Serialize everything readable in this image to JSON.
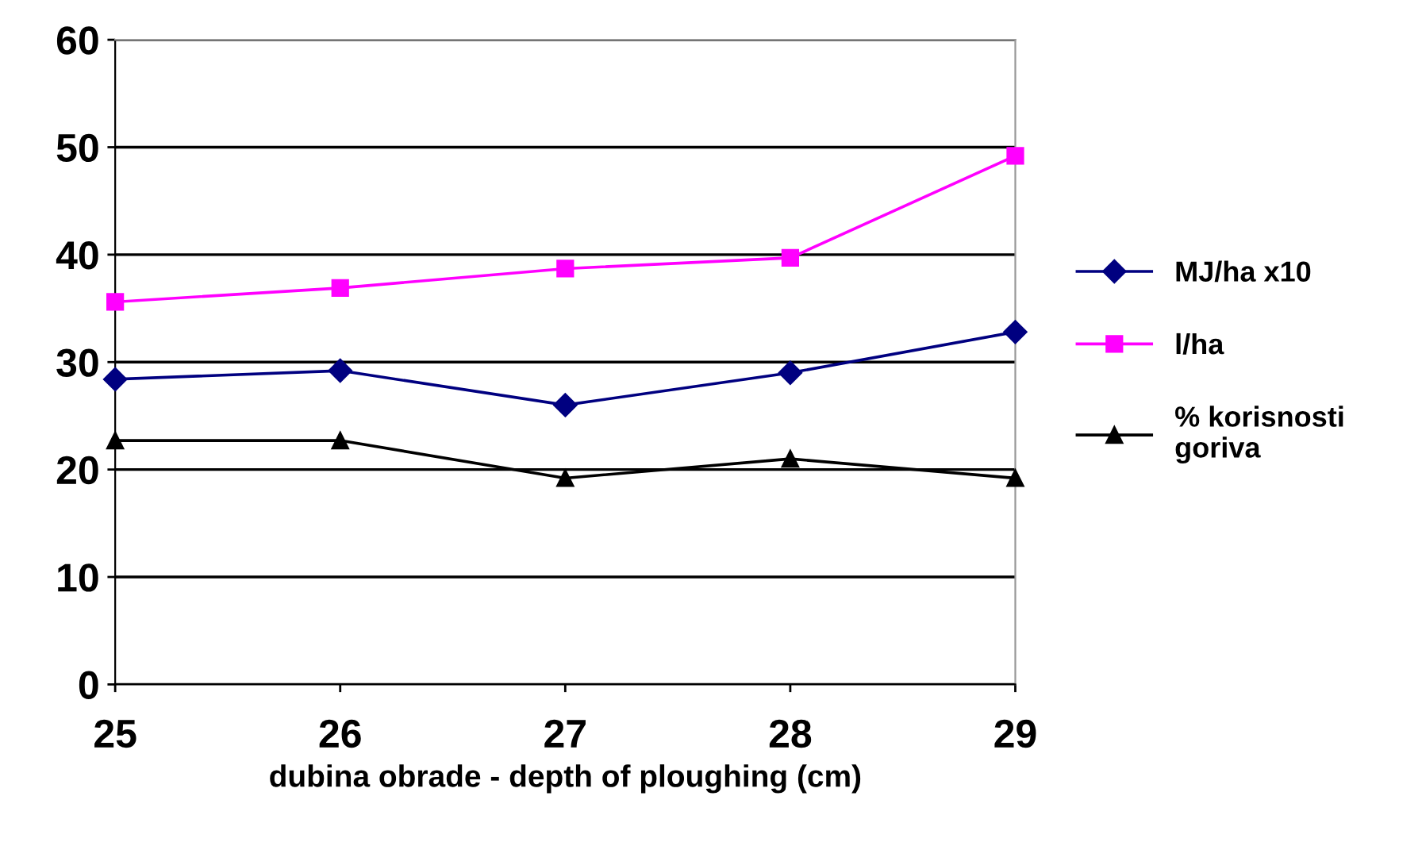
{
  "chart_data": {
    "type": "line",
    "xlabel": "dubina obrade - depth of ploughing (cm)",
    "x": [
      25,
      26,
      27,
      28,
      29
    ],
    "xlim": [
      25,
      29
    ],
    "xticks": [
      25,
      26,
      27,
      28,
      29
    ],
    "ylim": [
      0,
      60
    ],
    "yticks": [
      0,
      10,
      20,
      30,
      40,
      50,
      60
    ],
    "grid": "y",
    "legend": "right",
    "line_style": "solid",
    "series": [
      {
        "name": "MJ/ha x10",
        "color": "#000080",
        "marker": "diamond",
        "values": [
          28.4,
          29.2,
          26.0,
          29.0,
          32.8
        ]
      },
      {
        "name": "l/ha",
        "color": "#ff00ff",
        "marker": "square",
        "values": [
          35.6,
          36.9,
          38.7,
          39.7,
          49.2
        ]
      },
      {
        "name": "% korisnosti\ngoriva",
        "color": "#000000",
        "marker": "triangle",
        "values": [
          22.7,
          22.7,
          19.2,
          21.0,
          19.2
        ]
      }
    ]
  }
}
